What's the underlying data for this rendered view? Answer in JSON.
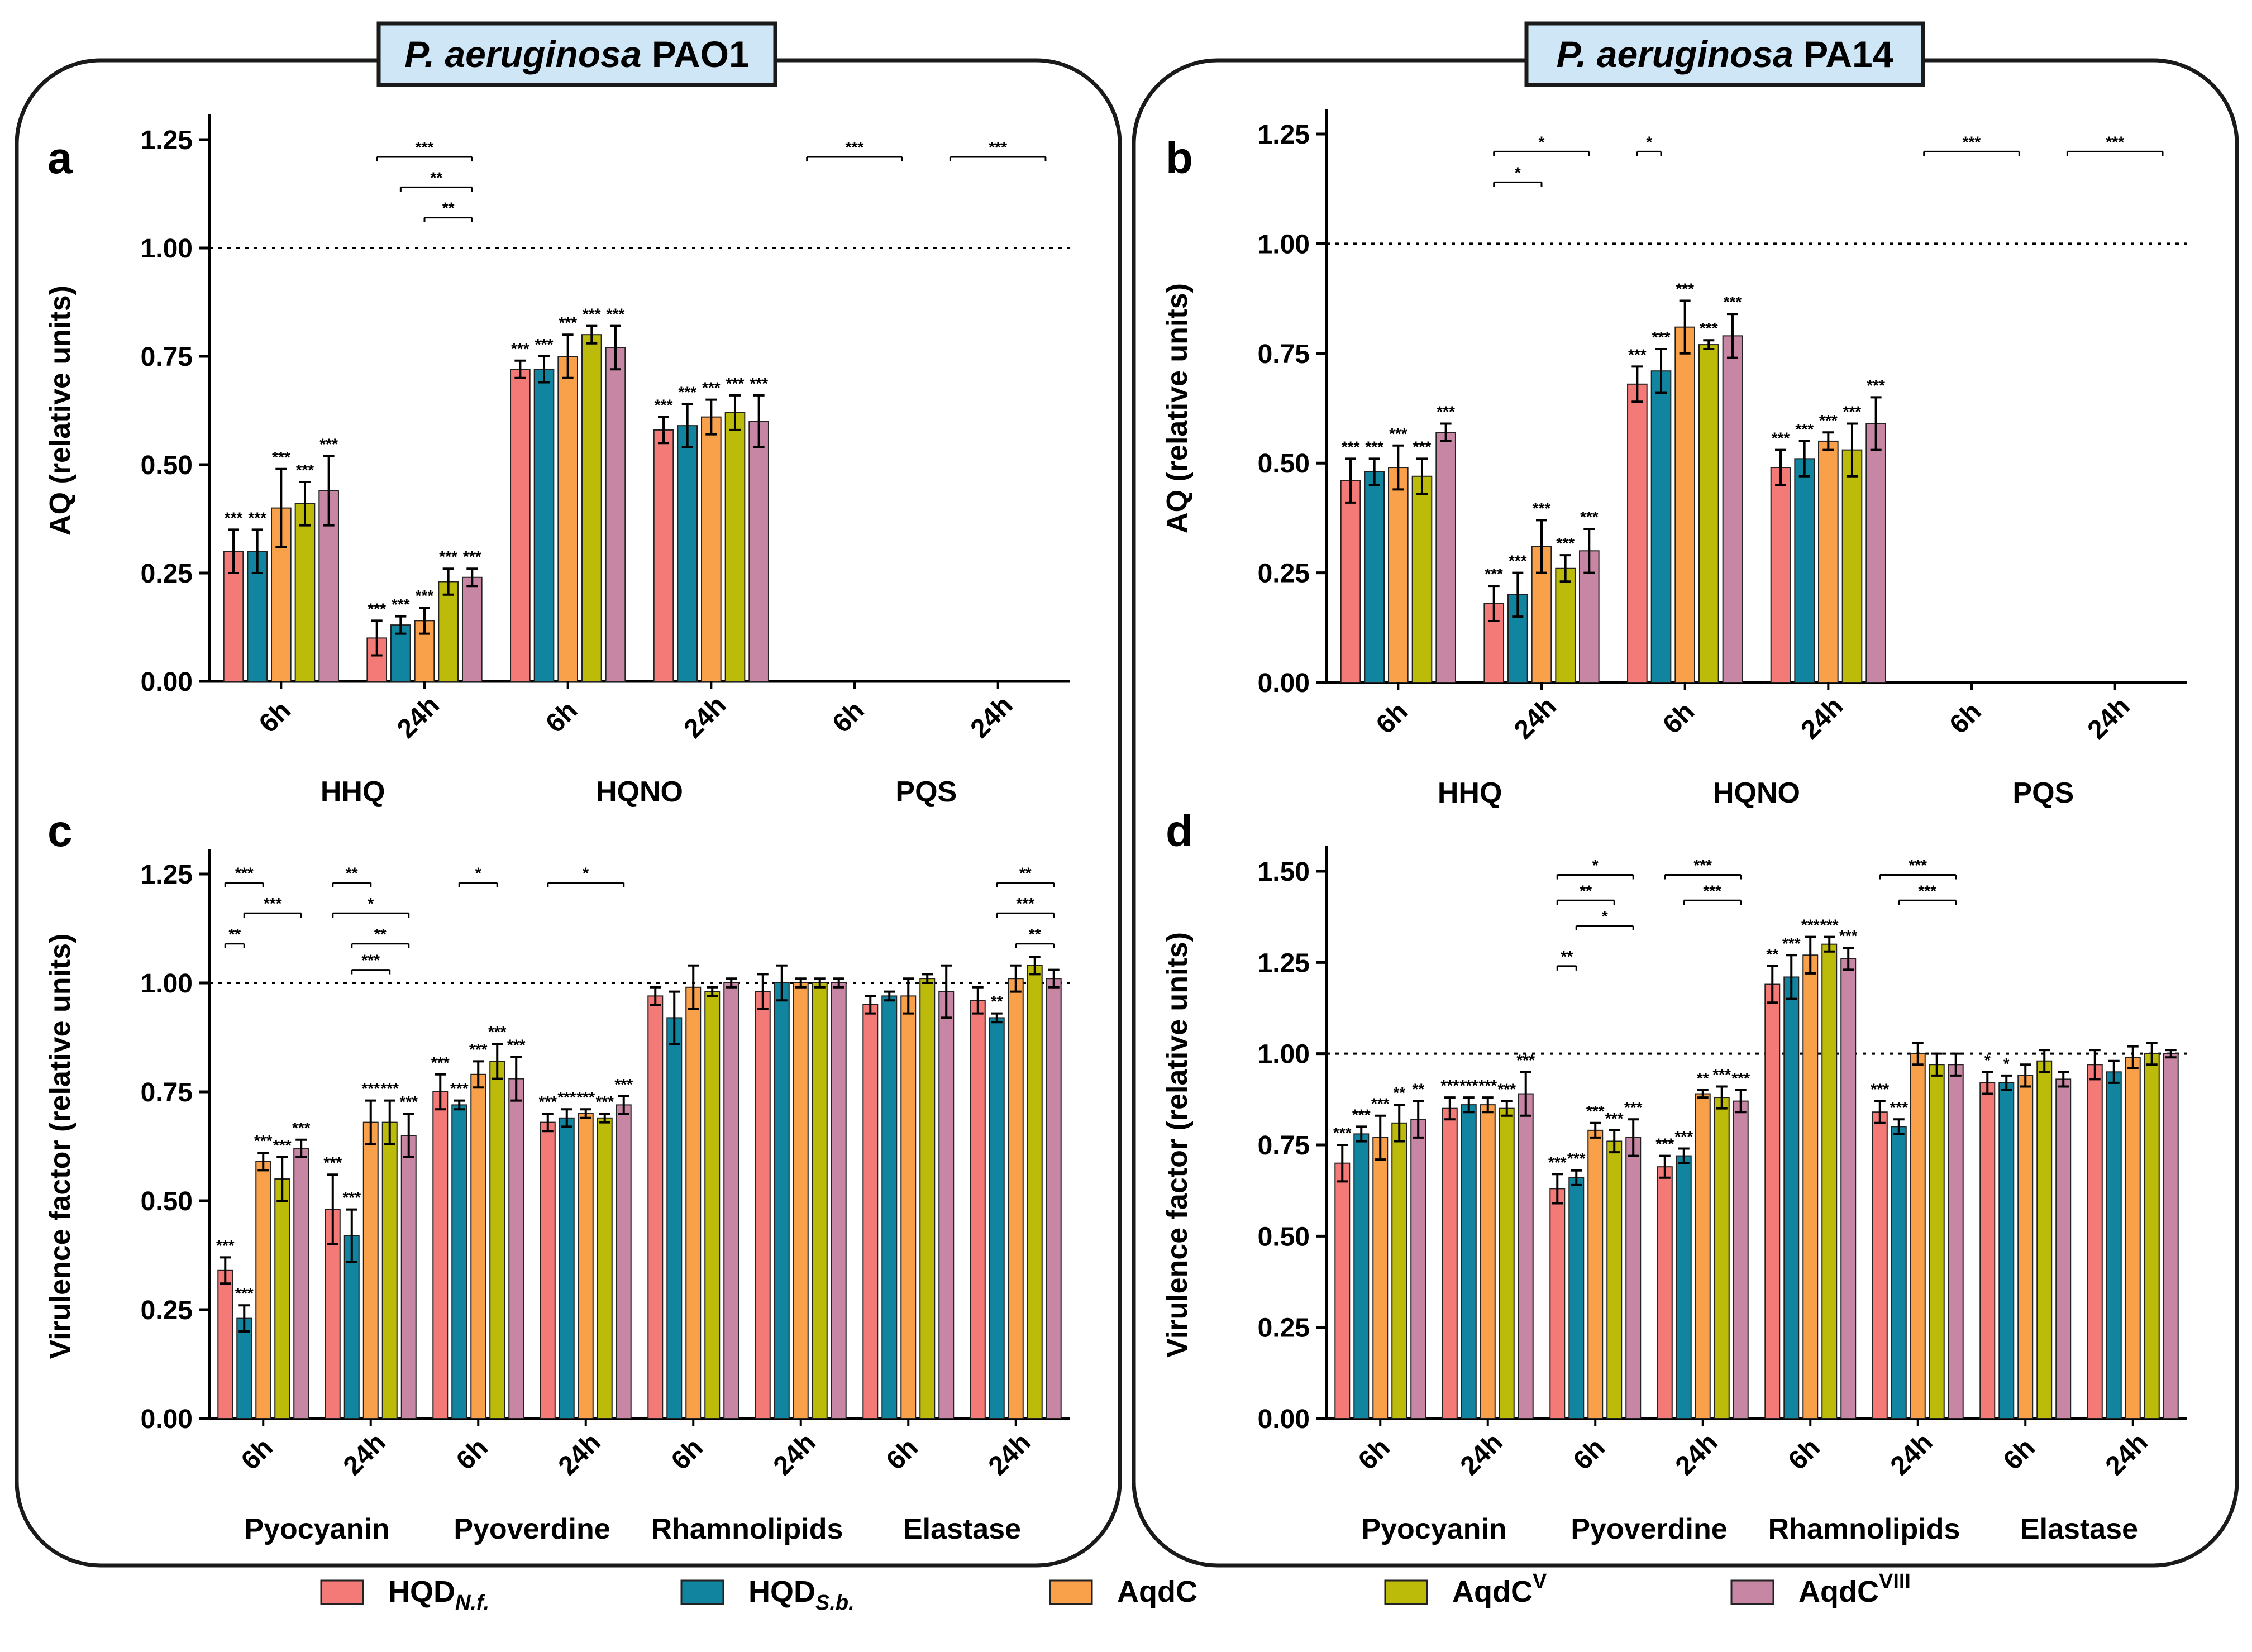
{
  "panel_titles": {
    "left": {
      "italic": "P. aeruginosa",
      "strain": "PAO1"
    },
    "right": {
      "italic": "P. aeruginosa",
      "strain": "PA14"
    }
  },
  "legend": [
    {
      "name": "HQD",
      "sub": "N.f.",
      "sup": "",
      "color": "#f47a78"
    },
    {
      "name": "HQD",
      "sub": "S.b.",
      "sup": "",
      "color": "#1184a0"
    },
    {
      "name": "AqdC",
      "sub": "",
      "sup": "",
      "color": "#f9a04a"
    },
    {
      "name": "AqdC",
      "sub": "",
      "sup": "V",
      "color": "#bcbb0a"
    },
    {
      "name": "AqdC",
      "sub": "",
      "sup": "VIII",
      "color": "#c886a5"
    }
  ],
  "chart_data": [
    {
      "panel": "a",
      "type": "bar",
      "ylabel": "AQ (relative units)",
      "ylim": [
        0,
        1.25
      ],
      "yticks": [
        0,
        0.25,
        0.5,
        0.75,
        1.0,
        1.25
      ],
      "ytick_labels": [
        "0.00",
        "0.25",
        "0.50",
        "0.75",
        "1.00",
        "1.25"
      ],
      "reference_line": 1.0,
      "groups": [
        "HHQ",
        "HQNO",
        "PQS"
      ],
      "categories": [
        "6h",
        "24h",
        "6h",
        "24h",
        "6h",
        "24h"
      ],
      "series": [
        {
          "name": "HQD N.f.",
          "values": [
            0.3,
            0.1,
            0.72,
            0.58,
            0,
            0
          ],
          "errors": [
            0.05,
            0.04,
            0.02,
            0.03,
            0,
            0
          ],
          "stars": [
            "***",
            "***",
            "***",
            "***",
            "",
            ""
          ]
        },
        {
          "name": "HQD S.b.",
          "values": [
            0.3,
            0.13,
            0.72,
            0.59,
            0,
            0
          ],
          "errors": [
            0.05,
            0.02,
            0.03,
            0.05,
            0,
            0
          ],
          "stars": [
            "***",
            "***",
            "***",
            "***",
            "",
            ""
          ]
        },
        {
          "name": "AqdC",
          "values": [
            0.4,
            0.14,
            0.75,
            0.61,
            0,
            0
          ],
          "errors": [
            0.09,
            0.03,
            0.05,
            0.04,
            0,
            0
          ],
          "stars": [
            "***",
            "***",
            "***",
            "***",
            "",
            ""
          ]
        },
        {
          "name": "AqdC V",
          "values": [
            0.41,
            0.23,
            0.8,
            0.62,
            0,
            0
          ],
          "errors": [
            0.05,
            0.03,
            0.02,
            0.04,
            0,
            0
          ],
          "stars": [
            "***",
            "***",
            "***",
            "***",
            "",
            ""
          ]
        },
        {
          "name": "AqdC VIII",
          "values": [
            0.44,
            0.24,
            0.77,
            0.6,
            0,
            0
          ],
          "errors": [
            0.08,
            0.02,
            0.05,
            0.06,
            0,
            0
          ],
          "stars": [
            "***",
            "***",
            "***",
            "***",
            "",
            ""
          ]
        }
      ],
      "brackets": [
        {
          "cat": 1,
          "from": 0,
          "to": 4,
          "label": "***",
          "y": 1.21
        },
        {
          "cat": 1,
          "from": 1,
          "to": 4,
          "label": "**",
          "y": 1.14
        },
        {
          "cat": 1,
          "from": 2,
          "to": 4,
          "label": "**",
          "y": 1.07
        },
        {
          "cat": 4,
          "from": 0,
          "to": 4,
          "label": "***",
          "y": 1.21
        },
        {
          "cat": 5,
          "from": 0,
          "to": 4,
          "label": "***",
          "y": 1.21
        }
      ]
    },
    {
      "panel": "b",
      "type": "bar",
      "ylabel": "AQ (relative units)",
      "ylim": [
        0,
        1.25
      ],
      "yticks": [
        0,
        0.25,
        0.5,
        0.75,
        1.0,
        1.25
      ],
      "ytick_labels": [
        "0.00",
        "0.25",
        "0.50",
        "0.75",
        "1.00",
        "1.25"
      ],
      "reference_line": 1.0,
      "groups": [
        "HHQ",
        "HQNO",
        "PQS"
      ],
      "categories": [
        "6h",
        "24h",
        "6h",
        "24h",
        "6h",
        "24h"
      ],
      "series": [
        {
          "name": "HQD N.f.",
          "values": [
            0.46,
            0.18,
            0.68,
            0.49,
            0,
            0
          ],
          "errors": [
            0.05,
            0.04,
            0.04,
            0.04,
            0,
            0
          ],
          "stars": [
            "***",
            "***",
            "***",
            "***",
            "",
            ""
          ]
        },
        {
          "name": "HQD S.b.",
          "values": [
            0.48,
            0.2,
            0.71,
            0.51,
            0,
            0
          ],
          "errors": [
            0.03,
            0.05,
            0.05,
            0.04,
            0,
            0
          ],
          "stars": [
            "***",
            "***",
            "***",
            "***",
            "",
            ""
          ]
        },
        {
          "name": "AqdC",
          "values": [
            0.49,
            0.31,
            0.81,
            0.55,
            0,
            0
          ],
          "errors": [
            0.05,
            0.06,
            0.06,
            0.02,
            0,
            0
          ],
          "stars": [
            "***",
            "***",
            "***",
            "***",
            "",
            ""
          ]
        },
        {
          "name": "AqdC V",
          "values": [
            0.47,
            0.26,
            0.77,
            0.53,
            0,
            0
          ],
          "errors": [
            0.04,
            0.03,
            0.01,
            0.06,
            0,
            0
          ],
          "stars": [
            "***",
            "***",
            "***",
            "***",
            "",
            ""
          ]
        },
        {
          "name": "AqdC VIII",
          "values": [
            0.57,
            0.3,
            0.79,
            0.59,
            0,
            0
          ],
          "errors": [
            0.02,
            0.05,
            0.05,
            0.06,
            0,
            0
          ],
          "stars": [
            "***",
            "***",
            "***",
            "***",
            "",
            ""
          ]
        }
      ],
      "brackets": [
        {
          "cat": 1,
          "from": 0,
          "to": 4,
          "label": "*",
          "y": 1.21
        },
        {
          "cat": 1,
          "from": 0,
          "to": 2,
          "label": "*",
          "y": 1.14
        },
        {
          "cat": 2,
          "from": 0,
          "to": 1,
          "label": "*",
          "y": 1.21
        },
        {
          "cat": 4,
          "from": 0,
          "to": 4,
          "label": "***",
          "y": 1.21
        },
        {
          "cat": 5,
          "from": 0,
          "to": 4,
          "label": "***",
          "y": 1.21
        }
      ]
    },
    {
      "panel": "c",
      "type": "bar",
      "ylabel": "Virulence factor (relative units)",
      "ylim": [
        0,
        1.25
      ],
      "yticks": [
        0,
        0.25,
        0.5,
        0.75,
        1.0,
        1.25
      ],
      "ytick_labels": [
        "0.00",
        "0.25",
        "0.50",
        "0.75",
        "1.00",
        "1.25"
      ],
      "reference_line": 1.0,
      "groups": [
        "Pyocyanin",
        "Pyoverdine",
        "Rhamnolipids",
        "Elastase"
      ],
      "categories": [
        "6h",
        "24h",
        "6h",
        "24h",
        "6h",
        "24h",
        "6h",
        "24h"
      ],
      "series": [
        {
          "name": "HQD N.f.",
          "values": [
            0.34,
            0.48,
            0.75,
            0.68,
            0.97,
            0.98,
            0.95,
            0.96
          ],
          "errors": [
            0.03,
            0.08,
            0.04,
            0.02,
            0.02,
            0.04,
            0.02,
            0.03
          ],
          "stars": [
            "***",
            "***",
            "***",
            "***",
            "",
            "",
            "",
            ""
          ]
        },
        {
          "name": "HQD S.b.",
          "values": [
            0.23,
            0.42,
            0.72,
            0.69,
            0.92,
            1.0,
            0.97,
            0.92
          ],
          "errors": [
            0.03,
            0.06,
            0.01,
            0.02,
            0.06,
            0.04,
            0.01,
            0.01
          ],
          "stars": [
            "***",
            "***",
            "***",
            "***",
            "",
            "",
            "",
            "**"
          ]
        },
        {
          "name": "AqdC",
          "values": [
            0.59,
            0.68,
            0.79,
            0.7,
            0.99,
            1.0,
            0.97,
            1.01
          ],
          "errors": [
            0.02,
            0.05,
            0.03,
            0.01,
            0.05,
            0.01,
            0.04,
            0.03
          ],
          "stars": [
            "***",
            "***",
            "***",
            "***",
            "",
            "",
            "",
            ""
          ]
        },
        {
          "name": "AqdC V",
          "values": [
            0.55,
            0.68,
            0.82,
            0.69,
            0.98,
            1.0,
            1.01,
            1.04
          ],
          "errors": [
            0.05,
            0.05,
            0.04,
            0.01,
            0.01,
            0.01,
            0.01,
            0.02
          ],
          "stars": [
            "***",
            "***",
            "***",
            "***",
            "",
            "",
            "",
            ""
          ]
        },
        {
          "name": "AqdC VIII",
          "values": [
            0.62,
            0.65,
            0.78,
            0.72,
            1.0,
            1.0,
            0.98,
            1.01
          ],
          "errors": [
            0.02,
            0.05,
            0.05,
            0.02,
            0.01,
            0.01,
            0.06,
            0.02
          ],
          "stars": [
            "***",
            "***",
            "***",
            "***",
            "",
            "",
            "",
            ""
          ]
        }
      ],
      "brackets": [
        {
          "cat": 0,
          "from": 0,
          "to": 2,
          "label": "***",
          "y": 1.23
        },
        {
          "cat": 0,
          "from": 1,
          "to": 4,
          "label": "***",
          "y": 1.16
        },
        {
          "cat": 0,
          "from": 0,
          "to": 1,
          "label": "**",
          "y": 1.09
        },
        {
          "cat": 1,
          "from": 0,
          "to": 2,
          "label": "**",
          "y": 1.23
        },
        {
          "cat": 1,
          "from": 0,
          "to": 4,
          "label": "*",
          "y": 1.16
        },
        {
          "cat": 1,
          "from": 1,
          "to": 4,
          "label": "**",
          "y": 1.09
        },
        {
          "cat": 1,
          "from": 1,
          "to": 3,
          "label": "***",
          "y": 1.03
        },
        {
          "cat": 2,
          "from": 1,
          "to": 3,
          "label": "*",
          "y": 1.23
        },
        {
          "cat": 3,
          "from": 0,
          "to": 4,
          "label": "*",
          "y": 1.23
        },
        {
          "cat": 7,
          "from": 1,
          "to": 4,
          "label": "**",
          "y": 1.23
        },
        {
          "cat": 7,
          "from": 1,
          "to": 4,
          "label": "***",
          "y": 1.16
        },
        {
          "cat": 7,
          "from": 2,
          "to": 4,
          "label": "**",
          "y": 1.09
        }
      ]
    },
    {
      "panel": "d",
      "type": "bar",
      "ylabel": "Virulence factor (relative units)",
      "ylim": [
        0,
        1.5
      ],
      "yticks": [
        0,
        0.25,
        0.5,
        0.75,
        1.0,
        1.25,
        1.5
      ],
      "ytick_labels": [
        "0.00",
        "0.25",
        "0.50",
        "0.75",
        "1.00",
        "1.25",
        "1.50"
      ],
      "reference_line": 1.0,
      "groups": [
        "Pyocyanin",
        "Pyoverdine",
        "Rhamnolipids",
        "Elastase"
      ],
      "categories": [
        "6h",
        "24h",
        "6h",
        "24h",
        "6h",
        "24h",
        "6h",
        "24h"
      ],
      "series": [
        {
          "name": "HQD N.f.",
          "values": [
            0.7,
            0.85,
            0.63,
            0.69,
            1.19,
            0.84,
            0.92,
            0.97
          ],
          "errors": [
            0.05,
            0.03,
            0.04,
            0.03,
            0.05,
            0.03,
            0.03,
            0.04
          ],
          "stars": [
            "***",
            "***",
            "***",
            "***",
            "**",
            "***",
            "*",
            ""
          ]
        },
        {
          "name": "HQD S.b.",
          "values": [
            0.78,
            0.86,
            0.66,
            0.72,
            1.21,
            0.8,
            0.92,
            0.95
          ],
          "errors": [
            0.02,
            0.02,
            0.02,
            0.02,
            0.06,
            0.02,
            0.02,
            0.03
          ],
          "stars": [
            "***",
            "***",
            "***",
            "***",
            "***",
            "***",
            "*",
            ""
          ]
        },
        {
          "name": "AqdC",
          "values": [
            0.77,
            0.86,
            0.79,
            0.89,
            1.27,
            1.0,
            0.94,
            0.99
          ],
          "errors": [
            0.06,
            0.02,
            0.02,
            0.01,
            0.05,
            0.03,
            0.03,
            0.03
          ],
          "stars": [
            "***",
            "***",
            "***",
            "**",
            "***",
            "",
            "",
            ""
          ]
        },
        {
          "name": "AqdC V",
          "values": [
            0.81,
            0.85,
            0.76,
            0.88,
            1.3,
            0.97,
            0.98,
            1.0
          ],
          "errors": [
            0.05,
            0.02,
            0.03,
            0.03,
            0.02,
            0.03,
            0.03,
            0.03
          ],
          "stars": [
            "**",
            "***",
            "***",
            "***",
            "***",
            "",
            "",
            ""
          ]
        },
        {
          "name": "AqdC VIII",
          "values": [
            0.82,
            0.89,
            0.77,
            0.87,
            1.26,
            0.97,
            0.93,
            1.0
          ],
          "errors": [
            0.05,
            0.06,
            0.05,
            0.03,
            0.03,
            0.03,
            0.02,
            0.01
          ],
          "stars": [
            "**",
            "***",
            "***",
            "***",
            "***",
            "",
            "",
            ""
          ]
        }
      ],
      "brackets": [
        {
          "cat": 2,
          "from": 0,
          "to": 4,
          "label": "*",
          "y": 1.49
        },
        {
          "cat": 2,
          "from": 0,
          "to": 3,
          "label": "**",
          "y": 1.42
        },
        {
          "cat": 2,
          "from": 1,
          "to": 4,
          "label": "*",
          "y": 1.35
        },
        {
          "cat": 2,
          "from": 0,
          "to": 1,
          "label": "**",
          "y": 1.24
        },
        {
          "cat": 3,
          "from": 0,
          "to": 4,
          "label": "***",
          "y": 1.49
        },
        {
          "cat": 3,
          "from": 1,
          "to": 4,
          "label": "***",
          "y": 1.42
        },
        {
          "cat": 5,
          "from": 0,
          "to": 4,
          "label": "***",
          "y": 1.49
        },
        {
          "cat": 5,
          "from": 1,
          "to": 4,
          "label": "***",
          "y": 1.42
        }
      ]
    }
  ]
}
